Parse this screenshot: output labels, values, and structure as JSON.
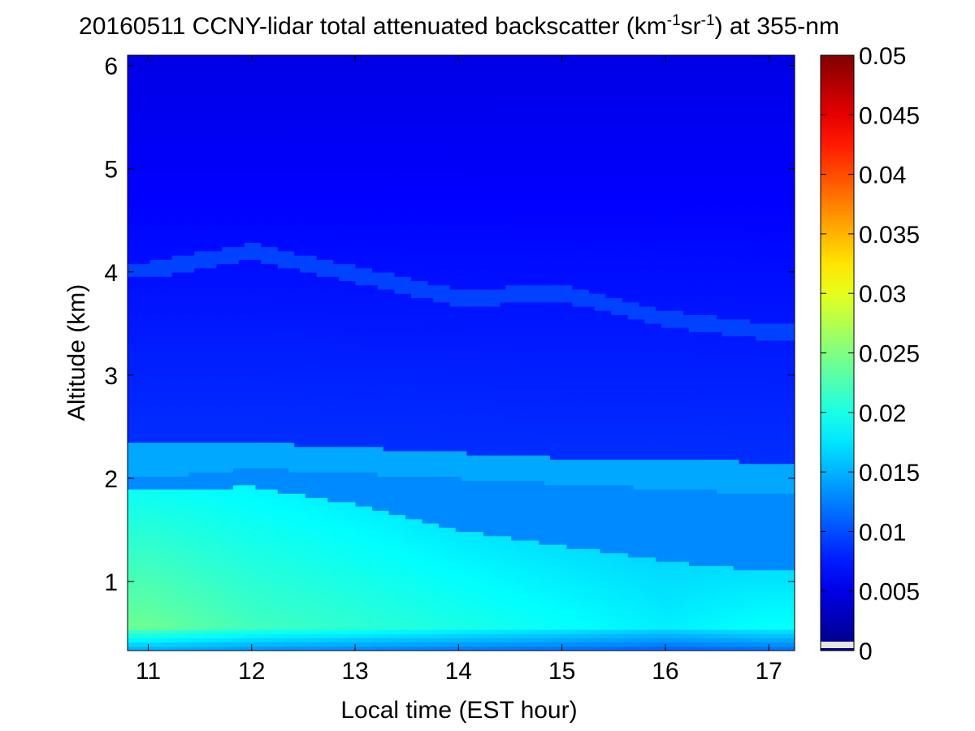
{
  "chart_data": {
    "type": "heatmap",
    "title": {
      "main": "20160511 CCNY-lidar total attenuated backscatter (km",
      "sup1": "-1",
      "mid": "sr",
      "sup2": "-1",
      "tail": ") at 355-nm"
    },
    "xlabel": "Local time (EST hour)",
    "ylabel": "Altitude (km)",
    "xlim": [
      10.8,
      17.25
    ],
    "ylim": [
      0.33,
      6.1
    ],
    "xticks": [
      11,
      12,
      13,
      14,
      15,
      16,
      17
    ],
    "yticks": [
      1,
      2,
      3,
      4,
      5,
      6
    ],
    "colorbar": {
      "colormap": "jet",
      "range": [
        0,
        0.05
      ],
      "ticks": [
        0,
        0.005,
        0.01,
        0.015,
        0.02,
        0.025,
        0.03,
        0.035,
        0.04,
        0.045,
        0.05
      ],
      "tick_labels": [
        "0",
        "0.005",
        "0.01",
        "0.015",
        "0.02",
        "0.025",
        "0.03",
        "0.035",
        "0.04",
        "0.045",
        "0.05"
      ]
    },
    "profile": {
      "time_hours": [
        11,
        12,
        13,
        14,
        15,
        16,
        17
      ],
      "aerosol_layer_top_km": [
        1.9,
        1.92,
        1.75,
        1.5,
        1.35,
        1.2,
        1.1
      ],
      "aloft_layer_base_km": [
        2.0,
        2.1,
        2.05,
        2.0,
        1.95,
        1.9,
        1.85
      ],
      "aloft_layer_top_km": [
        2.35,
        2.35,
        2.3,
        2.25,
        2.2,
        2.2,
        2.15
      ],
      "near_surface_backscatter": [
        0.024,
        0.022,
        0.021,
        0.02,
        0.019,
        0.018,
        0.019
      ],
      "residual_layer_altitude_km": [
        4.02,
        4.2,
        3.98,
        3.75,
        3.8,
        3.55,
        3.42
      ],
      "residual_layer_backscatter": 0.0095,
      "free_troposphere_backscatter_low": 0.0085,
      "free_troposphere_backscatter_high": 0.005
    },
    "grid": false
  }
}
